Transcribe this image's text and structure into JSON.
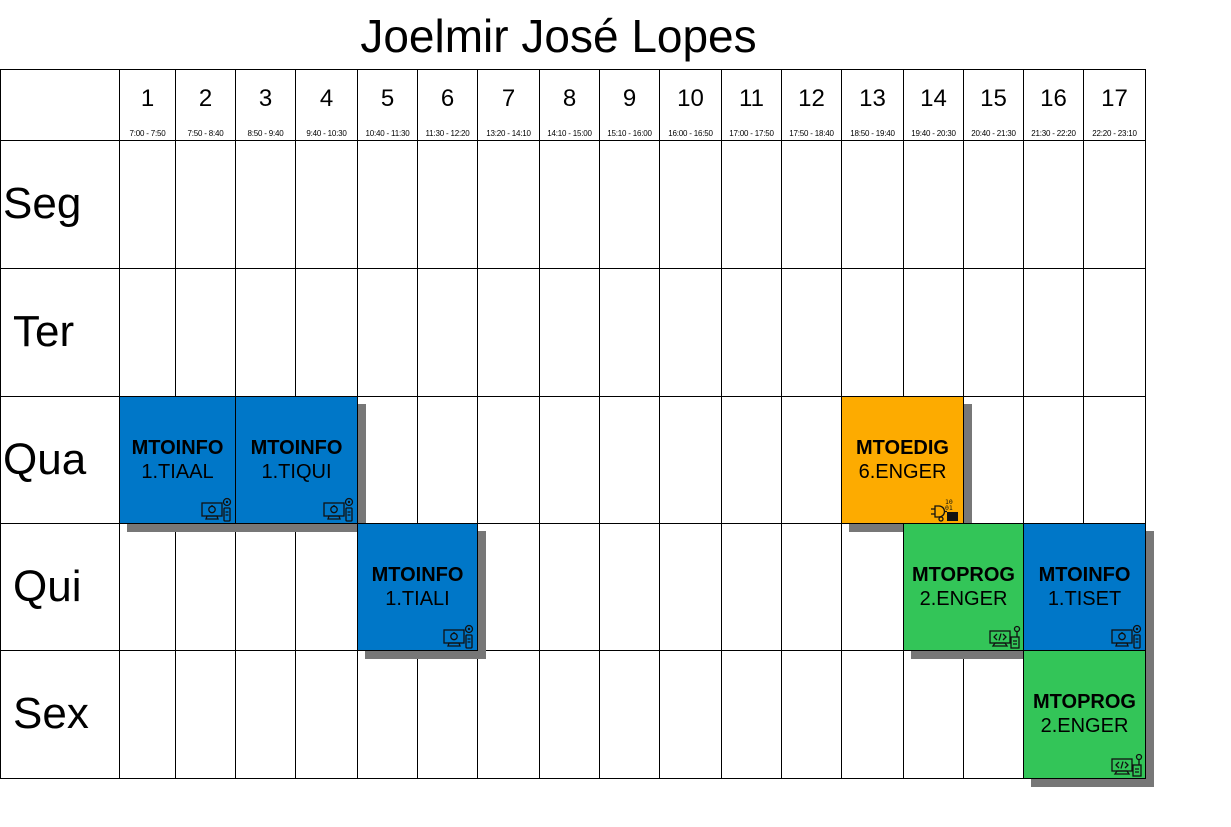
{
  "title": "Joelmir José Lopes",
  "colors": {
    "info": "#0077c8",
    "prog": "#33c558",
    "edig": "#fdab00",
    "shadow": "#777777",
    "grid": "#000000"
  },
  "columns": [
    {
      "num": "1",
      "time": "7:00 - 7:50"
    },
    {
      "num": "2",
      "time": "7:50 - 8:40"
    },
    {
      "num": "3",
      "time": "8:50 - 9:40"
    },
    {
      "num": "4",
      "time": "9:40 - 10:30"
    },
    {
      "num": "5",
      "time": "10:40 - 11:30"
    },
    {
      "num": "6",
      "time": "11:30 - 12:20"
    },
    {
      "num": "7",
      "time": "13:20 - 14:10"
    },
    {
      "num": "8",
      "time": "14:10 - 15:00"
    },
    {
      "num": "9",
      "time": "15:10 - 16:00"
    },
    {
      "num": "10",
      "time": "16:00 - 16:50"
    },
    {
      "num": "11",
      "time": "17:00 - 17:50"
    },
    {
      "num": "12",
      "time": "17:50 - 18:40"
    },
    {
      "num": "13",
      "time": "18:50 - 19:40"
    },
    {
      "num": "14",
      "time": "19:40 - 20:30"
    },
    {
      "num": "15",
      "time": "20:40 - 21:30"
    },
    {
      "num": "16",
      "time": "21:30 - 22:20"
    },
    {
      "num": "17",
      "time": "22:20 - 23:10"
    }
  ],
  "days": [
    "Seg",
    "Ter",
    "Qua",
    "Qui",
    "Sex"
  ],
  "blocks": [
    {
      "day": 2,
      "start": 1,
      "end": 2,
      "code": "MTOINFO",
      "cls": "1.TIAAL",
      "type": "info",
      "icon": "computer-maintenance-icon"
    },
    {
      "day": 2,
      "start": 3,
      "end": 4,
      "code": "MTOINFO",
      "cls": "1.TIQUI",
      "type": "info",
      "icon": "computer-maintenance-icon"
    },
    {
      "day": 2,
      "start": 13,
      "end": 14,
      "code": "MTOEDIG",
      "cls": "6.ENGER",
      "type": "edig",
      "icon": "digital-circuit-icon"
    },
    {
      "day": 3,
      "start": 5,
      "end": 6,
      "code": "MTOINFO",
      "cls": "1.TIALI",
      "type": "info",
      "icon": "computer-maintenance-icon"
    },
    {
      "day": 3,
      "start": 14,
      "end": 15,
      "code": "MTOPROG",
      "cls": "2.ENGER",
      "type": "prog",
      "icon": "code-screen-icon"
    },
    {
      "day": 3,
      "start": 16,
      "end": 17,
      "code": "MTOINFO",
      "cls": "1.TISET",
      "type": "info",
      "icon": "computer-maintenance-icon"
    },
    {
      "day": 4,
      "start": 16,
      "end": 17,
      "code": "MTOPROG",
      "cls": "2.ENGER",
      "type": "prog",
      "icon": "code-screen-icon"
    }
  ]
}
